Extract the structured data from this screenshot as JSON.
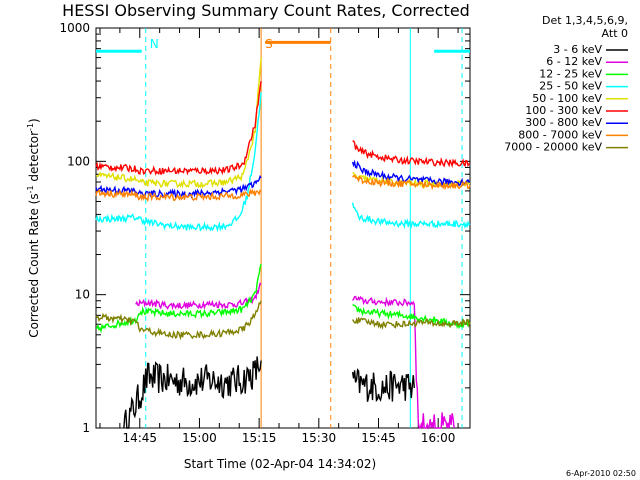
{
  "chart_data": {
    "type": "line",
    "title": "HESSI Observing Summary Count Rates, Corrected",
    "xlabel": "Start Time (02-Apr-04 14:34:02)",
    "ylabel": "Corrected Count Rate (s^-1 detector^-1)",
    "ylabel_parts": [
      "Corrected Count Rate (s",
      "-1",
      " detector",
      "-1",
      ")"
    ],
    "yscale": "log",
    "ylim": [
      1,
      1000
    ],
    "xlim_minutes_from_1434": [
      0,
      94
    ],
    "x_ticks": [
      {
        "label": "14:45",
        "min": 11
      },
      {
        "label": "15:00",
        "min": 26
      },
      {
        "label": "15:15",
        "min": 41
      },
      {
        "label": "15:30",
        "min": 56
      },
      {
        "label": "15:45",
        "min": 71
      },
      {
        "label": "16:00",
        "min": 86
      }
    ],
    "y_ticks": [
      {
        "label": "1",
        "v": 1
      },
      {
        "label": "10",
        "v": 10
      },
      {
        "label": "100",
        "v": 100
      },
      {
        "label": "1000",
        "v": 1000
      }
    ],
    "legend_header": [
      "Det 1,3,4,5,6,9,",
      "Att 0"
    ],
    "series": [
      {
        "name": "3 - 6 keV",
        "color": "#000000",
        "segments": [
          [
            [
              7,
              1.0
            ],
            [
              10,
              1.5
            ],
            [
              13,
              2.4
            ],
            [
              18,
              2.3
            ],
            [
              23,
              2.2
            ],
            [
              28,
              2.3
            ],
            [
              33,
              2.2
            ],
            [
              37,
              2.3
            ],
            [
              40,
              2.6
            ],
            [
              41.5,
              3.2
            ]
          ],
          [
            [
              64.5,
              2.2
            ],
            [
              67,
              2.1
            ],
            [
              72,
              2.0
            ],
            [
              77,
              2.1
            ],
            [
              80,
              2.0
            ]
          ]
        ]
      },
      {
        "name": "6 - 12 keV",
        "color": "#e000e0",
        "segments": [
          [
            [
              10,
              8.5
            ],
            [
              13,
              8.7
            ],
            [
              18,
              8.3
            ],
            [
              23,
              8.3
            ],
            [
              28,
              8.5
            ],
            [
              33,
              8.4
            ],
            [
              37,
              8.6
            ],
            [
              40,
              9.5
            ],
            [
              41.5,
              12
            ]
          ],
          [
            [
              64.5,
              9.5
            ],
            [
              67,
              9.0
            ],
            [
              72,
              8.8
            ],
            [
              77,
              8.7
            ],
            [
              80,
              8.7
            ],
            [
              81,
              1.0
            ],
            [
              86,
              1.0
            ],
            [
              90,
              1.0
            ]
          ]
        ]
      },
      {
        "name": "12 - 25 keV",
        "color": "#00ff00",
        "segments": [
          [
            [
              0,
              5.5
            ],
            [
              5,
              6.0
            ],
            [
              10,
              6.5
            ],
            [
              11,
              7.5
            ],
            [
              18,
              7.2
            ],
            [
              23,
              7.2
            ],
            [
              28,
              7.2
            ],
            [
              33,
              7.4
            ],
            [
              37,
              7.8
            ],
            [
              40,
              10
            ],
            [
              41.5,
              17
            ]
          ],
          [
            [
              64.5,
              8.0
            ],
            [
              67,
              7.5
            ],
            [
              72,
              7.2
            ],
            [
              77,
              7.0
            ],
            [
              80,
              6.8
            ],
            [
              85,
              6.5
            ],
            [
              90,
              6.0
            ],
            [
              94,
              6.0
            ]
          ]
        ]
      },
      {
        "name": "25 - 50 keV",
        "color": "#00ffff",
        "segments": [
          [
            [
              0,
              37
            ],
            [
              5,
              37
            ],
            [
              10,
              38
            ],
            [
              13,
              35
            ],
            [
              18,
              33
            ],
            [
              23,
              32
            ],
            [
              28,
              32
            ],
            [
              33,
              33
            ],
            [
              36,
              38
            ],
            [
              38,
              55
            ],
            [
              40,
              120
            ],
            [
              41.5,
              330
            ]
          ],
          [
            [
              64.5,
              47
            ],
            [
              66,
              38
            ],
            [
              72,
              35
            ],
            [
              77,
              34
            ],
            [
              82,
              34
            ],
            [
              88,
              34
            ],
            [
              94,
              34
            ]
          ]
        ]
      },
      {
        "name": "50 - 100 keV",
        "color": "#e0e000",
        "segments": [
          [
            [
              0,
              78
            ],
            [
              5,
              76
            ],
            [
              10,
              73
            ],
            [
              11,
              69
            ],
            [
              18,
              68
            ],
            [
              23,
              68
            ],
            [
              28,
              68
            ],
            [
              33,
              70
            ],
            [
              37,
              78
            ],
            [
              40,
              170
            ],
            [
              41.5,
              600
            ]
          ],
          [
            [
              64.5,
              80
            ],
            [
              66,
              75
            ],
            [
              72,
              71
            ],
            [
              77,
              69
            ],
            [
              82,
              68
            ],
            [
              88,
              68
            ],
            [
              94,
              68
            ]
          ]
        ]
      },
      {
        "name": "100 - 300 keV",
        "color": "#ff0000",
        "segments": [
          [
            [
              0,
              92
            ],
            [
              5,
              90
            ],
            [
              10,
              88
            ],
            [
              11,
              85
            ],
            [
              18,
              85
            ],
            [
              23,
              85
            ],
            [
              28,
              85
            ],
            [
              33,
              86
            ],
            [
              37,
              95
            ],
            [
              40,
              190
            ],
            [
              41.5,
              400
            ]
          ],
          [
            [
              64.5,
              140
            ],
            [
              66,
              120
            ],
            [
              70,
              110
            ],
            [
              75,
              103
            ],
            [
              80,
              100
            ],
            [
              86,
              98
            ],
            [
              94,
              96
            ]
          ]
        ]
      },
      {
        "name": "300 - 800 keV",
        "color": "#0000ff",
        "segments": [
          [
            [
              0,
              62
            ],
            [
              5,
              61
            ],
            [
              10,
              60
            ],
            [
              11,
              57
            ],
            [
              18,
              57
            ],
            [
              23,
              57
            ],
            [
              28,
              58
            ],
            [
              33,
              60
            ],
            [
              37,
              62
            ],
            [
              40,
              68
            ],
            [
              41.5,
              75
            ]
          ],
          [
            [
              64.5,
              100
            ],
            [
              67,
              85
            ],
            [
              72,
              78
            ],
            [
              77,
              74
            ],
            [
              82,
              72
            ],
            [
              88,
              70
            ],
            [
              94,
              70
            ]
          ]
        ]
      },
      {
        "name": "800 - 7000 keV",
        "color": "#ff8000",
        "segments": [
          [
            [
              0,
              58
            ],
            [
              5,
              57
            ],
            [
              10,
              56
            ],
            [
              11,
              54
            ],
            [
              18,
              54
            ],
            [
              23,
              54
            ],
            [
              28,
              54
            ],
            [
              33,
              55
            ],
            [
              37,
              56
            ],
            [
              40,
              58
            ],
            [
              41.5,
              60
            ]
          ],
          [
            [
              64.5,
              78
            ],
            [
              67,
              72
            ],
            [
              72,
              69
            ],
            [
              77,
              68
            ],
            [
              82,
              67
            ],
            [
              88,
              66
            ],
            [
              94,
              66
            ]
          ]
        ]
      },
      {
        "name": "7000 - 20000 keV",
        "color": "#808000",
        "segments": [
          [
            [
              0,
              6.8
            ],
            [
              5,
              6.6
            ],
            [
              10,
              6.3
            ],
            [
              11,
              5.5
            ],
            [
              18,
              5.0
            ],
            [
              23,
              5.0
            ],
            [
              28,
              5.0
            ],
            [
              33,
              5.2
            ],
            [
              37,
              5.5
            ],
            [
              40,
              7
            ],
            [
              41.5,
              9
            ]
          ],
          [
            [
              64.5,
              6.5
            ],
            [
              67,
              6.3
            ],
            [
              72,
              6.0
            ],
            [
              77,
              6.0
            ],
            [
              82,
              6.2
            ],
            [
              88,
              6.0
            ],
            [
              94,
              6.2
            ]
          ]
        ]
      }
    ],
    "attenuator_bars": [
      {
        "color": "#00ffff",
        "segments": [
          [
            0,
            11.5
          ],
          [
            85,
            94
          ]
        ],
        "level": 670
      },
      {
        "color": "#ff8000",
        "segments": [
          [
            42.5,
            59
          ]
        ],
        "level": 780
      }
    ],
    "markers": [
      {
        "label": "N",
        "color": "#00ffff",
        "min": 12.5,
        "style": "dash"
      },
      {
        "label": "",
        "color": "#00ffff",
        "min": 79,
        "style": "solid"
      },
      {
        "label": "",
        "color": "#00ffff",
        "min": 92,
        "style": "dash"
      },
      {
        "label": "S",
        "color": "#ff8000",
        "min": 41.5,
        "style": "solid"
      },
      {
        "label": "",
        "color": "#ff8000",
        "min": 59,
        "style": "dash"
      }
    ],
    "footer_date": "6-Apr-2010 02:50"
  }
}
